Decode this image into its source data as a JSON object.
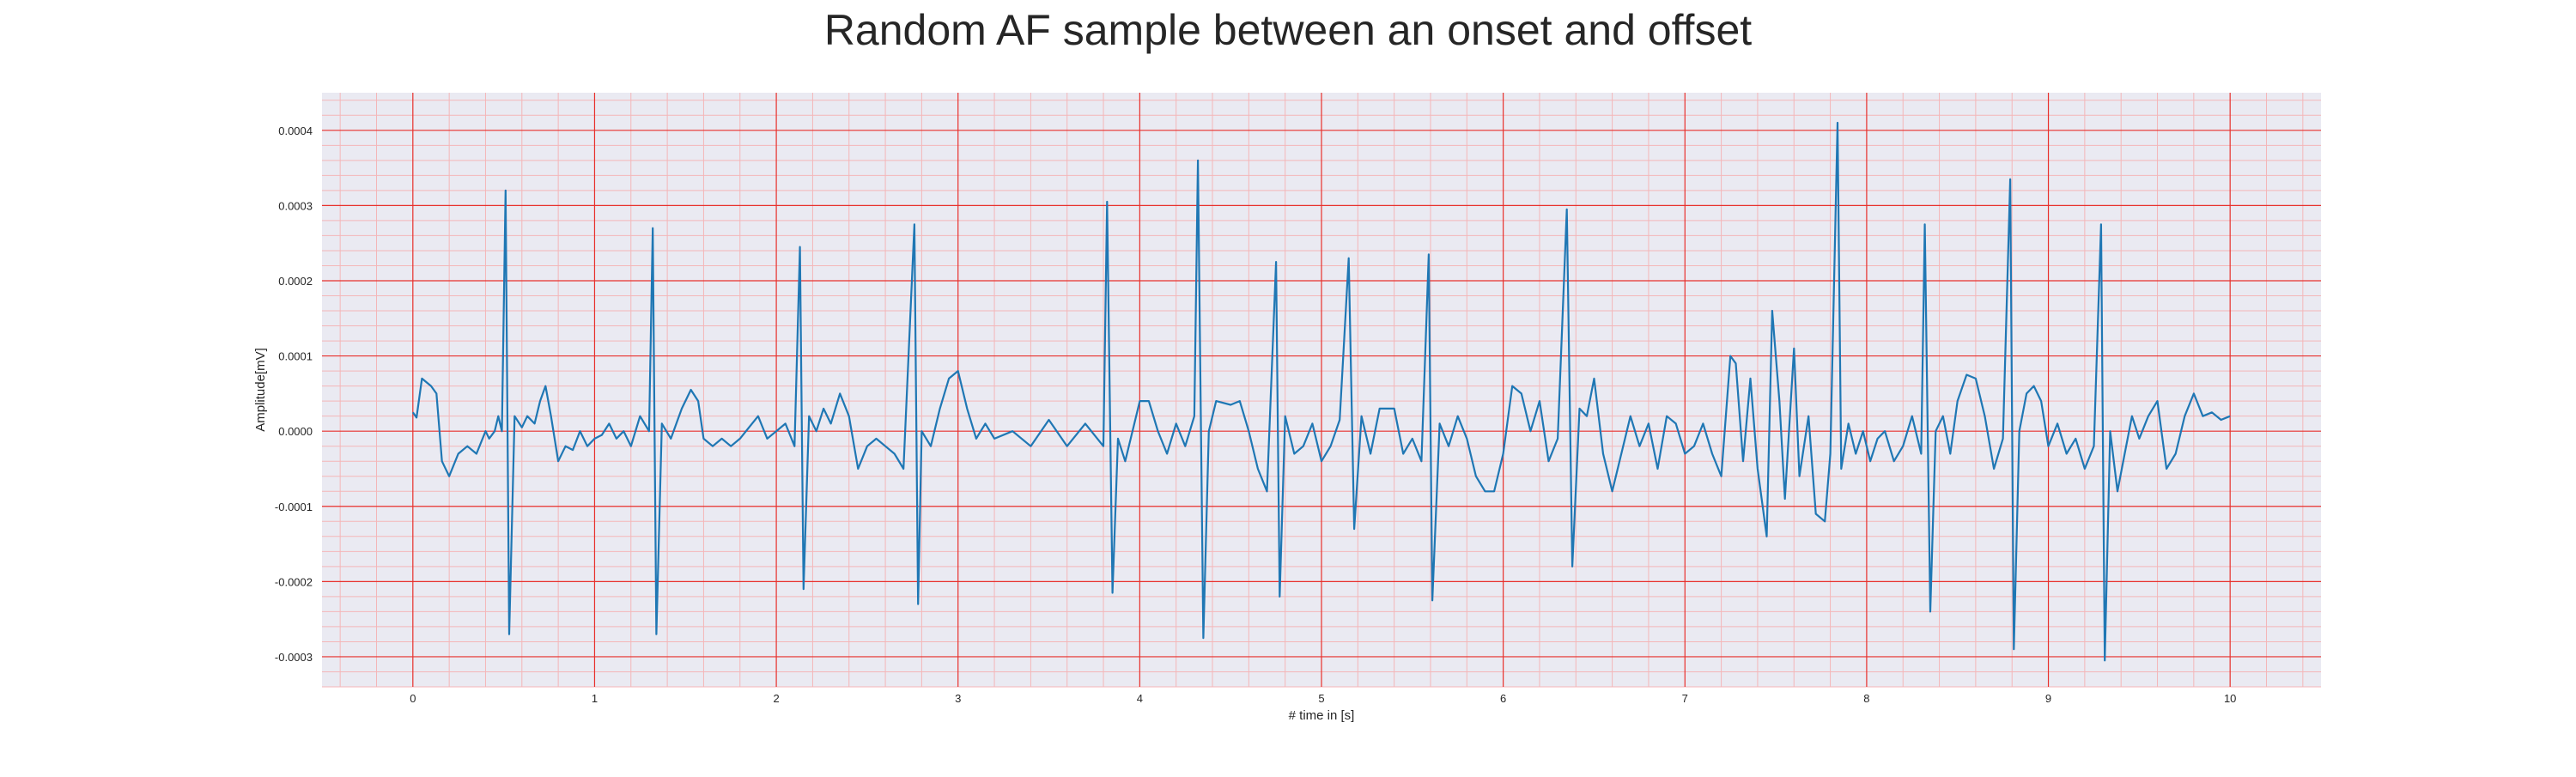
{
  "chart_data": {
    "type": "line",
    "title": "Random AF sample between an onset and offset",
    "xlabel": "# time in [s]",
    "ylabel": "Amplitude[mV]",
    "xlim": [
      -0.5,
      10.5
    ],
    "ylim": [
      -0.00034,
      0.00045
    ],
    "xticks": [
      0,
      1,
      2,
      3,
      4,
      5,
      6,
      7,
      8,
      9,
      10
    ],
    "xtick_labels": [
      "0",
      "1",
      "2",
      "3",
      "4",
      "5",
      "6",
      "7",
      "8",
      "9",
      "10"
    ],
    "yticks": [
      -0.0003,
      -0.0002,
      -0.0001,
      0.0,
      0.0001,
      0.0002,
      0.0003,
      0.0004
    ],
    "ytick_labels": [
      "-0.0003",
      "-0.0002",
      "-0.0001",
      "0.0000",
      "0.0001",
      "0.0002",
      "0.0003",
      "0.0004"
    ],
    "grid": true,
    "minor_grid": true,
    "colors": {
      "background": "#eaeaf2",
      "major_grid": "#e8302c",
      "minor_grid": "#f4b6b8",
      "line": "#1f77b4"
    },
    "series": [
      {
        "points": [
          [
            0.0,
            2.5e-05
          ],
          [
            0.02,
            1.8e-05
          ],
          [
            0.05,
            7e-05
          ],
          [
            0.1,
            6e-05
          ],
          [
            0.13,
            5e-05
          ],
          [
            0.16,
            -4e-05
          ],
          [
            0.2,
            -6e-05
          ],
          [
            0.25,
            -3e-05
          ],
          [
            0.3,
            -2e-05
          ],
          [
            0.35,
            -3e-05
          ],
          [
            0.4,
            0.0
          ],
          [
            0.42,
            -1e-05
          ],
          [
            0.45,
            0.0
          ],
          [
            0.47,
            2e-05
          ],
          [
            0.49,
            0.0
          ],
          [
            0.51,
            0.00032
          ],
          [
            0.53,
            -0.00027
          ],
          [
            0.56,
            2e-05
          ],
          [
            0.6,
            5e-06
          ],
          [
            0.63,
            2e-05
          ],
          [
            0.67,
            1e-05
          ],
          [
            0.7,
            4e-05
          ],
          [
            0.73,
            6e-05
          ],
          [
            0.76,
            2e-05
          ],
          [
            0.8,
            -4e-05
          ],
          [
            0.84,
            -2e-05
          ],
          [
            0.88,
            -2.5e-05
          ],
          [
            0.92,
            0.0
          ],
          [
            0.96,
            -2e-05
          ],
          [
            1.0,
            -1e-05
          ],
          [
            1.04,
            -5e-06
          ],
          [
            1.08,
            1e-05
          ],
          [
            1.12,
            -1e-05
          ],
          [
            1.16,
            0.0
          ],
          [
            1.2,
            -2e-05
          ],
          [
            1.25,
            2e-05
          ],
          [
            1.3,
            0.0
          ],
          [
            1.32,
            0.00027
          ],
          [
            1.34,
            -0.00027
          ],
          [
            1.37,
            1e-05
          ],
          [
            1.42,
            -1e-05
          ],
          [
            1.48,
            3e-05
          ],
          [
            1.53,
            5.5e-05
          ],
          [
            1.57,
            4e-05
          ],
          [
            1.6,
            -1e-05
          ],
          [
            1.65,
            -2e-05
          ],
          [
            1.7,
            -1e-05
          ],
          [
            1.75,
            -2e-05
          ],
          [
            1.8,
            -1e-05
          ],
          [
            1.85,
            5e-06
          ],
          [
            1.9,
            2e-05
          ],
          [
            1.95,
            -1e-05
          ],
          [
            2.0,
            0.0
          ],
          [
            2.05,
            1e-05
          ],
          [
            2.1,
            -2e-05
          ],
          [
            2.13,
            0.000245
          ],
          [
            2.15,
            -0.00021
          ],
          [
            2.18,
            2e-05
          ],
          [
            2.22,
            0.0
          ],
          [
            2.26,
            3e-05
          ],
          [
            2.3,
            1e-05
          ],
          [
            2.35,
            5e-05
          ],
          [
            2.4,
            2e-05
          ],
          [
            2.45,
            -5e-05
          ],
          [
            2.5,
            -2e-05
          ],
          [
            2.55,
            -1e-05
          ],
          [
            2.6,
            -2e-05
          ],
          [
            2.65,
            -3e-05
          ],
          [
            2.7,
            -5e-05
          ],
          [
            2.76,
            0.000275
          ],
          [
            2.78,
            -0.00023
          ],
          [
            2.8,
            0.0
          ],
          [
            2.85,
            -2e-05
          ],
          [
            2.9,
            3e-05
          ],
          [
            2.95,
            7e-05
          ],
          [
            3.0,
            8e-05
          ],
          [
            3.05,
            3e-05
          ],
          [
            3.1,
            -1e-05
          ],
          [
            3.15,
            1e-05
          ],
          [
            3.2,
            -1e-05
          ],
          [
            3.3,
            0.0
          ],
          [
            3.4,
            -2e-05
          ],
          [
            3.5,
            1.5e-05
          ],
          [
            3.6,
            -2e-05
          ],
          [
            3.7,
            1e-05
          ],
          [
            3.8,
            -2e-05
          ],
          [
            3.82,
            0.000305
          ],
          [
            3.85,
            -0.000215
          ],
          [
            3.88,
            -1e-05
          ],
          [
            3.92,
            -4e-05
          ],
          [
            3.96,
            0.0
          ],
          [
            4.0,
            4e-05
          ],
          [
            4.05,
            4e-05
          ],
          [
            4.1,
            0.0
          ],
          [
            4.15,
            -3e-05
          ],
          [
            4.2,
            1e-05
          ],
          [
            4.25,
            -2e-05
          ],
          [
            4.3,
            2e-05
          ],
          [
            4.32,
            0.00036
          ],
          [
            4.35,
            -0.000275
          ],
          [
            4.38,
            0.0
          ],
          [
            4.42,
            4e-05
          ],
          [
            4.5,
            3.5e-05
          ],
          [
            4.55,
            4e-05
          ],
          [
            4.6,
            0.0
          ],
          [
            4.65,
            -5e-05
          ],
          [
            4.7,
            -8e-05
          ],
          [
            4.75,
            0.000225
          ],
          [
            4.77,
            -0.00022
          ],
          [
            4.8,
            2e-05
          ],
          [
            4.85,
            -3e-05
          ],
          [
            4.9,
            -2e-05
          ],
          [
            4.95,
            1e-05
          ],
          [
            5.0,
            -4e-05
          ],
          [
            5.05,
            -2e-05
          ],
          [
            5.1,
            1.5e-05
          ],
          [
            5.15,
            0.00023
          ],
          [
            5.18,
            -0.00013
          ],
          [
            5.22,
            2e-05
          ],
          [
            5.27,
            -3e-05
          ],
          [
            5.32,
            3e-05
          ],
          [
            5.4,
            3e-05
          ],
          [
            5.45,
            -3e-05
          ],
          [
            5.5,
            -1e-05
          ],
          [
            5.55,
            -4e-05
          ],
          [
            5.59,
            0.000235
          ],
          [
            5.61,
            -0.000225
          ],
          [
            5.65,
            1e-05
          ],
          [
            5.7,
            -2e-05
          ],
          [
            5.75,
            2e-05
          ],
          [
            5.8,
            -1e-05
          ],
          [
            5.85,
            -6e-05
          ],
          [
            5.9,
            -8e-05
          ],
          [
            5.95,
            -8e-05
          ],
          [
            6.0,
            -3e-05
          ],
          [
            6.05,
            6e-05
          ],
          [
            6.1,
            5e-05
          ],
          [
            6.15,
            0.0
          ],
          [
            6.2,
            4e-05
          ],
          [
            6.25,
            -4e-05
          ],
          [
            6.3,
            -1e-05
          ],
          [
            6.35,
            0.000295
          ],
          [
            6.38,
            -0.00018
          ],
          [
            6.42,
            3e-05
          ],
          [
            6.46,
            2e-05
          ],
          [
            6.5,
            7e-05
          ],
          [
            6.55,
            -3e-05
          ],
          [
            6.6,
            -8e-05
          ],
          [
            6.65,
            -3e-05
          ],
          [
            6.7,
            2e-05
          ],
          [
            6.75,
            -2e-05
          ],
          [
            6.8,
            1e-05
          ],
          [
            6.85,
            -5e-05
          ],
          [
            6.9,
            2e-05
          ],
          [
            6.95,
            1e-05
          ],
          [
            7.0,
            -3e-05
          ],
          [
            7.05,
            -2e-05
          ],
          [
            7.1,
            1e-05
          ],
          [
            7.15,
            -3e-05
          ],
          [
            7.2,
            -6e-05
          ],
          [
            7.25,
            0.0001
          ],
          [
            7.28,
            9e-05
          ],
          [
            7.32,
            -4e-05
          ],
          [
            7.36,
            7e-05
          ],
          [
            7.4,
            -5e-05
          ],
          [
            7.45,
            -0.00014
          ],
          [
            7.48,
            0.00016
          ],
          [
            7.52,
            4e-05
          ],
          [
            7.55,
            -9e-05
          ],
          [
            7.6,
            0.00011
          ],
          [
            7.63,
            -6e-05
          ],
          [
            7.68,
            2e-05
          ],
          [
            7.72,
            -0.00011
          ],
          [
            7.77,
            -0.00012
          ],
          [
            7.8,
            -3e-05
          ],
          [
            7.84,
            0.00041
          ],
          [
            7.86,
            -5e-05
          ],
          [
            7.9,
            1e-05
          ],
          [
            7.94,
            -3e-05
          ],
          [
            7.98,
            0.0
          ],
          [
            8.02,
            -4e-05
          ],
          [
            8.06,
            -1e-05
          ],
          [
            8.1,
            0.0
          ],
          [
            8.15,
            -4e-05
          ],
          [
            8.2,
            -2e-05
          ],
          [
            8.25,
            2e-05
          ],
          [
            8.3,
            -3e-05
          ],
          [
            8.32,
            0.000275
          ],
          [
            8.35,
            -0.00024
          ],
          [
            8.38,
            0.0
          ],
          [
            8.42,
            2e-05
          ],
          [
            8.46,
            -3e-05
          ],
          [
            8.5,
            4e-05
          ],
          [
            8.55,
            7.5e-05
          ],
          [
            8.6,
            7e-05
          ],
          [
            8.65,
            2e-05
          ],
          [
            8.7,
            -5e-05
          ],
          [
            8.75,
            -1e-05
          ],
          [
            8.79,
            0.000335
          ],
          [
            8.81,
            -0.00029
          ],
          [
            8.84,
            0.0
          ],
          [
            8.88,
            5e-05
          ],
          [
            8.92,
            6e-05
          ],
          [
            8.96,
            4e-05
          ],
          [
            9.0,
            -2e-05
          ],
          [
            9.05,
            1e-05
          ],
          [
            9.1,
            -3e-05
          ],
          [
            9.15,
            -1e-05
          ],
          [
            9.2,
            -5e-05
          ],
          [
            9.25,
            -2e-05
          ],
          [
            9.29,
            0.000275
          ],
          [
            9.31,
            -0.000305
          ],
          [
            9.34,
            0.0
          ],
          [
            9.38,
            -8e-05
          ],
          [
            9.42,
            -3e-05
          ],
          [
            9.46,
            2e-05
          ],
          [
            9.5,
            -1e-05
          ],
          [
            9.55,
            2e-05
          ],
          [
            9.6,
            4e-05
          ],
          [
            9.65,
            -5e-05
          ],
          [
            9.7,
            -3e-05
          ],
          [
            9.75,
            2e-05
          ],
          [
            9.8,
            5e-05
          ],
          [
            9.85,
            2e-05
          ],
          [
            9.9,
            2.5e-05
          ],
          [
            9.95,
            1.5e-05
          ],
          [
            10.0,
            2e-05
          ]
        ]
      }
    ]
  }
}
